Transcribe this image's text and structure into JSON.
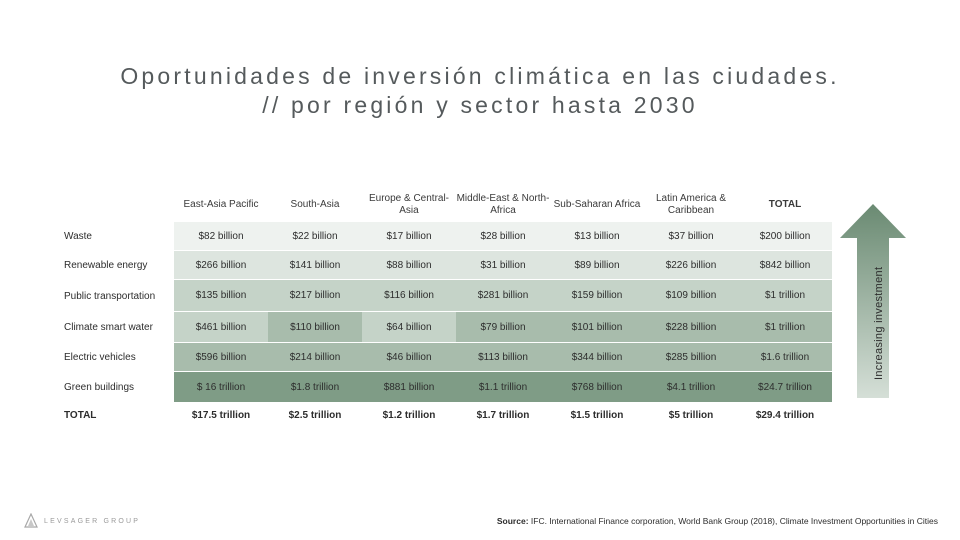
{
  "title": {
    "line1": "Oportunidades de inversión climática en las ciudades.",
    "line2": "// por región y sector hasta 2030"
  },
  "chart_data": {
    "type": "table",
    "title": "Oportunidades de inversión climática en las ciudades. // por región y sector hasta 2030",
    "columns": [
      "East-Asia Pacific",
      "South-Asia",
      "Europe & Central-Asia",
      "Middle-East & North-Africa",
      "Sub-Saharan Africa",
      "Latin America & Caribbean",
      "TOTAL"
    ],
    "rows": [
      {
        "label": "Waste",
        "values": [
          "$82 billion",
          "$22 billion",
          "$17 billion",
          "$28 billion",
          "$13 billion",
          "$37 billion",
          "$200 billion"
        ]
      },
      {
        "label": "Renewable energy",
        "values": [
          "$266 billion",
          "$141 billion",
          "$88 billion",
          "$31 billion",
          "$89 billion",
          "$226 billion",
          "$842 billion"
        ]
      },
      {
        "label": "Public transportation",
        "values": [
          "$135 billion",
          "$217 billion",
          "$116 billion",
          "$281 billion",
          "$159 billion",
          "$109 billion",
          "$1 trillion"
        ]
      },
      {
        "label": "Climate smart water",
        "values": [
          "$461 billion",
          "$110 billion",
          "$64 billion",
          "$79 billion",
          "$101 billion",
          "$228 billion",
          "$1 trillion"
        ]
      },
      {
        "label": "Electric vehicles",
        "values": [
          "$596 billion",
          "$214 billion",
          "$46 billion",
          "$113 billion",
          "$344 billion",
          "$285 billion",
          "$1.6 trillion"
        ]
      },
      {
        "label": "Green buildings",
        "values": [
          "$ 16 trillion",
          "$1.8 trillion",
          "$881 billion",
          "$1.1 trillion",
          "$768 billion",
          "$4.1 trillion",
          "$24.7 trillion"
        ]
      },
      {
        "label": "TOTAL",
        "values": [
          "$17.5 trillion",
          "$2.5 trillion",
          "$1.2 trillion",
          "$1.7 trillion",
          "$1.5 trillion",
          "$5 trillion",
          "$29.4 trillion"
        ]
      }
    ],
    "shading_levels": [
      [
        1,
        1,
        1,
        1,
        1,
        1,
        1
      ],
      [
        2,
        2,
        2,
        2,
        2,
        2,
        2
      ],
      [
        3,
        3,
        3,
        3,
        3,
        3,
        3
      ],
      [
        3,
        4,
        3,
        4,
        4,
        4,
        4
      ],
      [
        4,
        4,
        4,
        4,
        4,
        4,
        4
      ],
      [
        5,
        5,
        5,
        5,
        5,
        5,
        5
      ],
      [
        0,
        0,
        0,
        0,
        0,
        0,
        0
      ]
    ]
  },
  "colors": {
    "level0": "#ffffff",
    "level1": "#eef2ef",
    "level2": "#dde5df",
    "level3": "#c5d3c8",
    "level4": "#a8bcac",
    "level5": "#7f9c86",
    "arrow_top": "#6a8a72",
    "arrow_bottom": "#d5dfd7"
  },
  "arrow_label": "Increasing investment",
  "logo": {
    "text": "LEVSAGER GROUP"
  },
  "source": {
    "label": "Source:",
    "text": "IFC. International Finance corporation, World Bank Group (2018), Climate Investment Opportunities in Cities"
  }
}
